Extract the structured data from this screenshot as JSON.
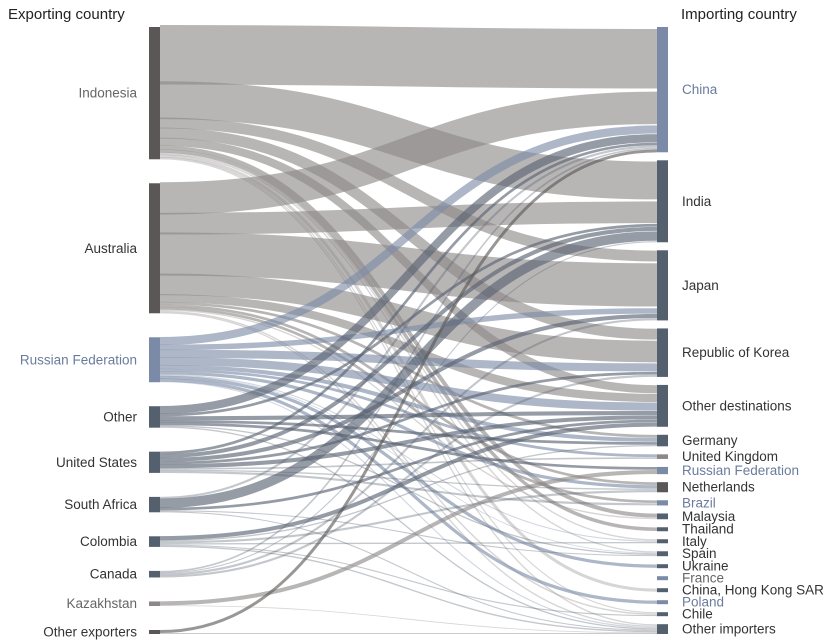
{
  "titles": {
    "exporting": "Exporting country",
    "importing": "Importing country"
  },
  "colors": {
    "dark": "#5a5756",
    "gray": "#8c8887",
    "slate": "#55606f",
    "blue": "#7b8aa6",
    "text_dark": "#333333",
    "text_gray": "#666666",
    "text_blue": "#6a7c9c"
  },
  "exporters": [
    {
      "name": "Indonesia",
      "color": "dark",
      "text": "text_gray"
    },
    {
      "name": "Australia",
      "color": "dark",
      "text": "text_dark"
    },
    {
      "name": "Russian Federation",
      "color": "blue",
      "text": "text_blue"
    },
    {
      "name": "Other",
      "color": "slate",
      "text": "text_dark"
    },
    {
      "name": "United States",
      "color": "slate",
      "text": "text_dark"
    },
    {
      "name": "South Africa",
      "color": "slate",
      "text": "text_dark"
    },
    {
      "name": "Colombia",
      "color": "slate",
      "text": "text_dark"
    },
    {
      "name": "Canada",
      "color": "slate",
      "text": "text_dark"
    },
    {
      "name": "Kazakhstan",
      "color": "gray",
      "text": "text_gray"
    },
    {
      "name": "Other exporters",
      "color": "dark",
      "text": "text_dark"
    }
  ],
  "importers": [
    {
      "name": "China",
      "color": "blue",
      "text": "text_blue"
    },
    {
      "name": "India",
      "color": "slate",
      "text": "text_dark"
    },
    {
      "name": "Japan",
      "color": "slate",
      "text": "text_dark"
    },
    {
      "name": "Republic of Korea",
      "color": "slate",
      "text": "text_dark"
    },
    {
      "name": "Other destinations",
      "color": "slate",
      "text": "text_dark"
    },
    {
      "name": "Germany",
      "color": "slate",
      "text": "text_dark"
    },
    {
      "name": "United Kingdom",
      "color": "gray",
      "text": "text_dark"
    },
    {
      "name": "Russian Federation",
      "color": "blue",
      "text": "text_blue"
    },
    {
      "name": "Netherlands",
      "color": "dark",
      "text": "text_dark"
    },
    {
      "name": "Brazil",
      "color": "blue",
      "text": "text_blue"
    },
    {
      "name": "Malaysia",
      "color": "slate",
      "text": "text_dark"
    },
    {
      "name": "Thailand",
      "color": "slate",
      "text": "text_dark"
    },
    {
      "name": "Italy",
      "color": "slate",
      "text": "text_dark"
    },
    {
      "name": "Spain",
      "color": "slate",
      "text": "text_dark"
    },
    {
      "name": "Ukraine",
      "color": "slate",
      "text": "text_dark"
    },
    {
      "name": "France",
      "color": "blue",
      "text": "text_gray"
    },
    {
      "name": "China, Hong Kong SAR",
      "color": "slate",
      "text": "text_dark"
    },
    {
      "name": "Poland",
      "color": "blue",
      "text": "text_blue"
    },
    {
      "name": "Chile",
      "color": "slate",
      "text": "text_dark"
    },
    {
      "name": "Other importers",
      "color": "slate",
      "text": "text_dark"
    }
  ],
  "flows": [
    {
      "from": "Indonesia",
      "to": "China",
      "value": 22,
      "color": "gray"
    },
    {
      "from": "Indonesia",
      "to": "India",
      "value": 14,
      "color": "gray"
    },
    {
      "from": "Indonesia",
      "to": "Republic of Korea",
      "value": 4,
      "color": "gray"
    },
    {
      "from": "Indonesia",
      "to": "Japan",
      "value": 4,
      "color": "gray"
    },
    {
      "from": "Indonesia",
      "to": "Other destinations",
      "value": 3,
      "color": "gray"
    },
    {
      "from": "Indonesia",
      "to": "Malaysia",
      "value": 1.5,
      "color": "gray"
    },
    {
      "from": "Indonesia",
      "to": "Thailand",
      "value": 1.2,
      "color": "gray"
    },
    {
      "from": "Indonesia",
      "to": "Italy",
      "value": 0.5,
      "color": "gray"
    },
    {
      "from": "Indonesia",
      "to": "Spain",
      "value": 0.5,
      "color": "gray"
    },
    {
      "from": "Indonesia",
      "to": "China, Hong Kong SAR",
      "value": 0.8,
      "color": "gray"
    },
    {
      "from": "Indonesia",
      "to": "Chile",
      "value": 0.4,
      "color": "gray"
    },
    {
      "from": "Indonesia",
      "to": "Other importers",
      "value": 0.5,
      "color": "gray"
    },
    {
      "from": "Australia",
      "to": "Japan",
      "value": 16,
      "color": "gray"
    },
    {
      "from": "Australia",
      "to": "China",
      "value": 12,
      "color": "gray"
    },
    {
      "from": "Australia",
      "to": "India",
      "value": 8,
      "color": "gray"
    },
    {
      "from": "Australia",
      "to": "Republic of Korea",
      "value": 8,
      "color": "gray"
    },
    {
      "from": "Australia",
      "to": "Other destinations",
      "value": 3,
      "color": "gray"
    },
    {
      "from": "Australia",
      "to": "Germany",
      "value": 1,
      "color": "gray"
    },
    {
      "from": "Australia",
      "to": "Netherlands",
      "value": 1,
      "color": "gray"
    },
    {
      "from": "Australia",
      "to": "Brazil",
      "value": 1,
      "color": "gray"
    },
    {
      "from": "Australia",
      "to": "Malaysia",
      "value": 0.5,
      "color": "gray"
    },
    {
      "from": "Australia",
      "to": "Chile",
      "value": 0.5,
      "color": "gray"
    },
    {
      "from": "Australia",
      "to": "Other importers",
      "value": 0.5,
      "color": "gray"
    },
    {
      "from": "Russian Federation",
      "to": "China",
      "value": 3,
      "color": "blue"
    },
    {
      "from": "Russian Federation",
      "to": "Republic of Korea",
      "value": 3,
      "color": "blue"
    },
    {
      "from": "Russian Federation",
      "to": "Japan",
      "value": 2,
      "color": "blue"
    },
    {
      "from": "Russian Federation",
      "to": "Other destinations",
      "value": 3,
      "color": "blue"
    },
    {
      "from": "Russian Federation",
      "to": "Germany",
      "value": 1.5,
      "color": "blue"
    },
    {
      "from": "Russian Federation",
      "to": "United Kingdom",
      "value": 1,
      "color": "blue"
    },
    {
      "from": "Russian Federation",
      "to": "Netherlands",
      "value": 1.2,
      "color": "blue"
    },
    {
      "from": "Russian Federation",
      "to": "Ukraine",
      "value": 1,
      "color": "blue"
    },
    {
      "from": "Russian Federation",
      "to": "Poland",
      "value": 1,
      "color": "blue"
    },
    {
      "from": "Russian Federation",
      "to": "Italy",
      "value": 0.4,
      "color": "blue"
    },
    {
      "from": "Russian Federation",
      "to": "Spain",
      "value": 0.3,
      "color": "blue"
    },
    {
      "from": "Russian Federation",
      "to": "Other importers",
      "value": 0.4,
      "color": "blue"
    },
    {
      "from": "Other",
      "to": "China",
      "value": 3,
      "color": "slate"
    },
    {
      "from": "Other",
      "to": "India",
      "value": 1,
      "color": "slate"
    },
    {
      "from": "Other",
      "to": "Other destinations",
      "value": 1.5,
      "color": "slate"
    },
    {
      "from": "Other",
      "to": "Germany",
      "value": 1,
      "color": "slate"
    },
    {
      "from": "Other",
      "to": "Russian Federation",
      "value": 1,
      "color": "slate"
    },
    {
      "from": "Other",
      "to": "Spain",
      "value": 0.5,
      "color": "slate"
    },
    {
      "from": "Other",
      "to": "Other importers",
      "value": 0.5,
      "color": "slate"
    },
    {
      "from": "United States",
      "to": "China",
      "value": 1,
      "color": "slate"
    },
    {
      "from": "United States",
      "to": "India",
      "value": 1.5,
      "color": "slate"
    },
    {
      "from": "United States",
      "to": "Japan",
      "value": 1.5,
      "color": "slate"
    },
    {
      "from": "United States",
      "to": "Republic of Korea",
      "value": 1,
      "color": "slate"
    },
    {
      "from": "United States",
      "to": "Other destinations",
      "value": 1.5,
      "color": "slate"
    },
    {
      "from": "United States",
      "to": "United Kingdom",
      "value": 0.6,
      "color": "slate"
    },
    {
      "from": "United States",
      "to": "Brazil",
      "value": 0.8,
      "color": "slate"
    },
    {
      "from": "United States",
      "to": "Netherlands",
      "value": 0.5,
      "color": "slate"
    },
    {
      "from": "South Africa",
      "to": "India",
      "value": 3.5,
      "color": "slate"
    },
    {
      "from": "South Africa",
      "to": "China",
      "value": 0.8,
      "color": "slate"
    },
    {
      "from": "South Africa",
      "to": "Other destinations",
      "value": 1,
      "color": "slate"
    },
    {
      "from": "South Africa",
      "to": "Spain",
      "value": 0.4,
      "color": "slate"
    },
    {
      "from": "South Africa",
      "to": "Other importers",
      "value": 0.4,
      "color": "slate"
    },
    {
      "from": "Colombia",
      "to": "Other destinations",
      "value": 1.5,
      "color": "slate"
    },
    {
      "from": "Colombia",
      "to": "Netherlands",
      "value": 0.8,
      "color": "slate"
    },
    {
      "from": "Colombia",
      "to": "Germany",
      "value": 0.5,
      "color": "slate"
    },
    {
      "from": "Colombia",
      "to": "Chile",
      "value": 0.4,
      "color": "slate"
    },
    {
      "from": "Colombia",
      "to": "Italy",
      "value": 0.5,
      "color": "slate"
    },
    {
      "from": "Colombia",
      "to": "Other importers",
      "value": 0.5,
      "color": "slate"
    },
    {
      "from": "Canada",
      "to": "Japan",
      "value": 0.8,
      "color": "slate"
    },
    {
      "from": "Canada",
      "to": "Republic of Korea",
      "value": 0.8,
      "color": "slate"
    },
    {
      "from": "Canada",
      "to": "China",
      "value": 0.6,
      "color": "slate"
    },
    {
      "from": "Canada",
      "to": "India",
      "value": 0.4,
      "color": "slate"
    },
    {
      "from": "Kazakhstan",
      "to": "Russian Federation",
      "value": 1.5,
      "color": "gray"
    },
    {
      "from": "Kazakhstan",
      "to": "Other importers",
      "value": 0.3,
      "color": "gray"
    },
    {
      "from": "Other exporters",
      "to": "China",
      "value": 1,
      "color": "dark"
    },
    {
      "from": "Other exporters",
      "to": "Other importers",
      "value": 0.3,
      "color": "dark"
    }
  ]
}
